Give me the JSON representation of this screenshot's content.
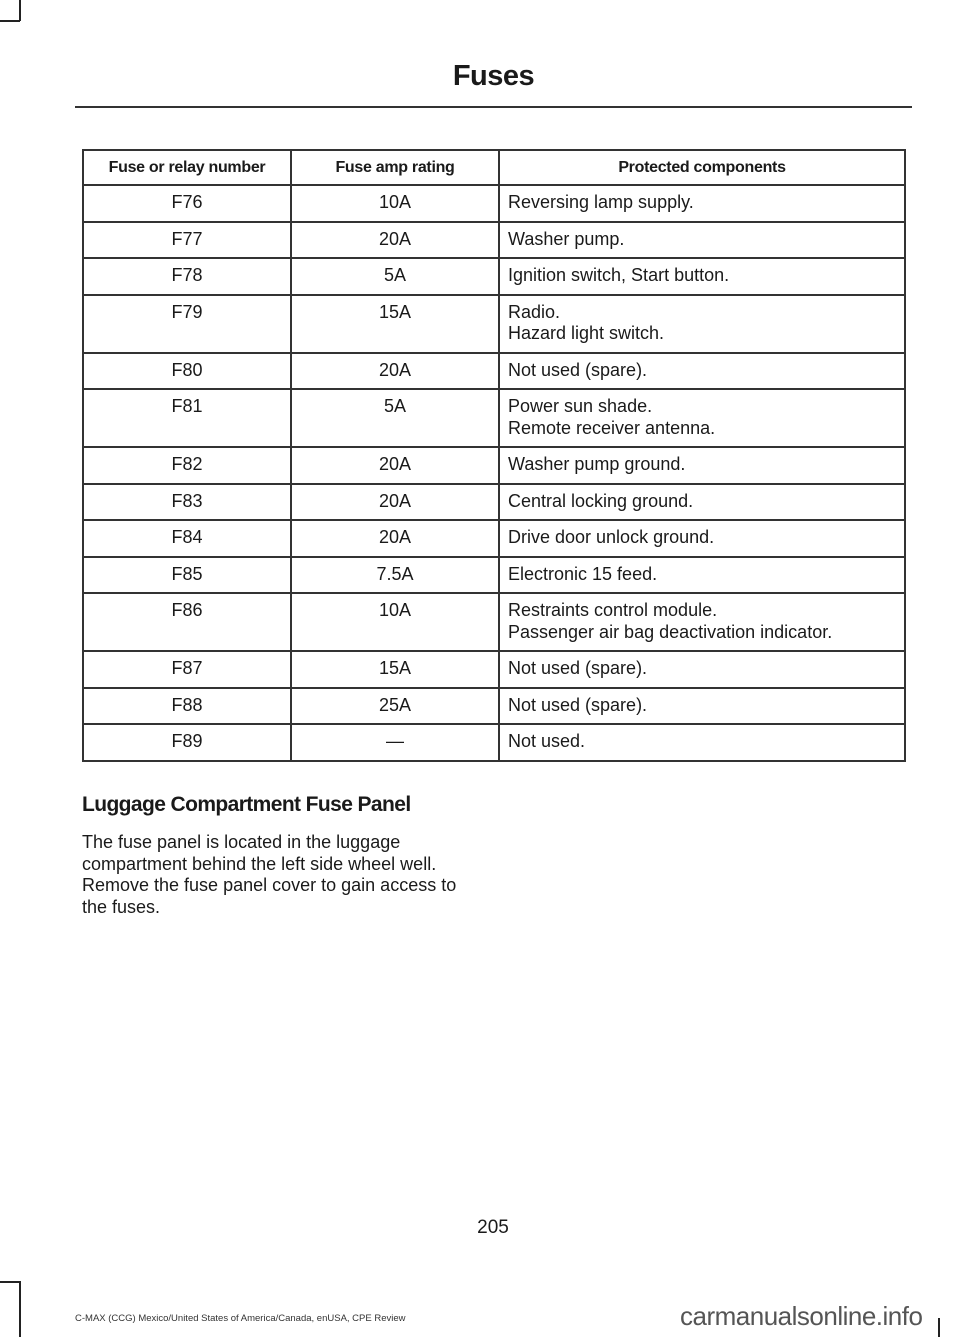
{
  "header": {
    "title": "Fuses"
  },
  "table": {
    "columns": [
      "Fuse or relay number",
      "Fuse amp rating",
      "Protected components"
    ],
    "rows": [
      {
        "fuse": "F76",
        "amp": "10A",
        "components": [
          "Reversing lamp supply."
        ]
      },
      {
        "fuse": "F77",
        "amp": "20A",
        "components": [
          "Washer pump."
        ]
      },
      {
        "fuse": "F78",
        "amp": "5A",
        "components": [
          "Ignition switch, Start button."
        ]
      },
      {
        "fuse": "F79",
        "amp": "15A",
        "components": [
          "Radio.",
          "Hazard light switch."
        ]
      },
      {
        "fuse": "F80",
        "amp": "20A",
        "components": [
          "Not used (spare)."
        ]
      },
      {
        "fuse": "F81",
        "amp": "5A",
        "components": [
          "Power sun shade.",
          "Remote receiver antenna."
        ]
      },
      {
        "fuse": "F82",
        "amp": "20A",
        "components": [
          "Washer pump ground."
        ]
      },
      {
        "fuse": "F83",
        "amp": "20A",
        "components": [
          "Central locking ground."
        ]
      },
      {
        "fuse": "F84",
        "amp": "20A",
        "components": [
          "Drive door unlock ground."
        ]
      },
      {
        "fuse": "F85",
        "amp": "7.5A",
        "components": [
          "Electronic 15 feed."
        ]
      },
      {
        "fuse": "F86",
        "amp": "10A",
        "components": [
          "Restraints control module.",
          "Passenger air bag deactivation indicator."
        ]
      },
      {
        "fuse": "F87",
        "amp": "15A",
        "components": [
          "Not used (spare)."
        ]
      },
      {
        "fuse": "F88",
        "amp": "25A",
        "components": [
          "Not used (spare)."
        ]
      },
      {
        "fuse": "F89",
        "amp": "—",
        "components": [
          "Not used."
        ]
      }
    ]
  },
  "section": {
    "heading": "Luggage Compartment Fuse Panel",
    "body": "The fuse panel is located in the luggage compartment behind the left side wheel well. Remove the fuse panel cover to gain access to the fuses."
  },
  "footer": {
    "page_number": "205",
    "doc_info": "C-MAX (CCG) Mexico/United States of America/Canada, enUSA, CPE Review",
    "watermark": "carmanualsonline.info"
  }
}
